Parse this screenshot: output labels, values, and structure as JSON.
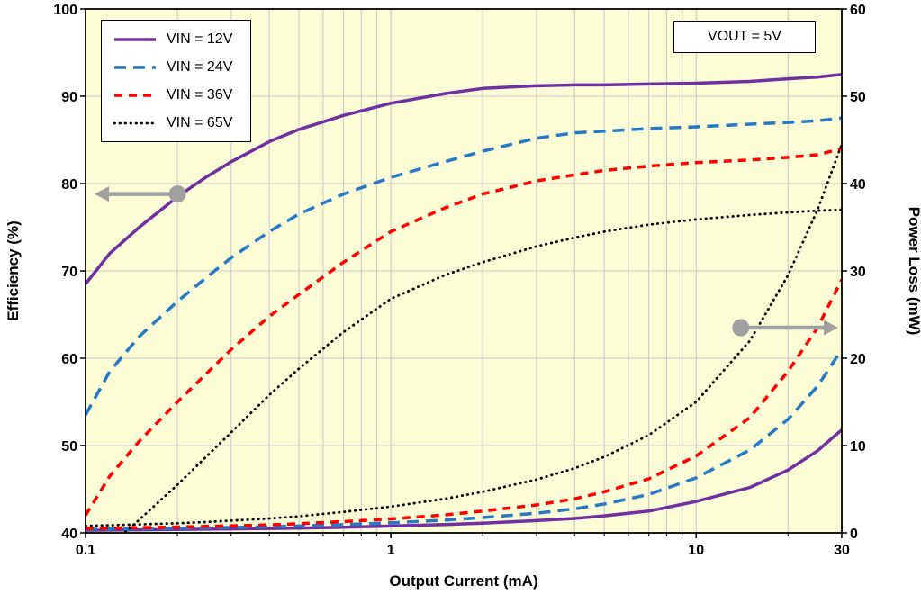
{
  "chart_data": {
    "type": "line",
    "annotation": "VOUT = 5V",
    "legend_position": "top-left",
    "grid": true,
    "x_axis": {
      "label": "Output Current (mA)",
      "scale": "log",
      "min": 0.1,
      "max": 30,
      "major_ticks": [
        0.1,
        1,
        10,
        30
      ],
      "tick_labels": [
        "0.1",
        "1",
        "10",
        "30"
      ],
      "major_gridlines": [
        1,
        10
      ],
      "minor_gridlines": [
        0.2,
        0.3,
        0.4,
        0.5,
        0.6,
        0.7,
        0.8,
        0.9,
        2,
        3,
        4,
        5,
        6,
        7,
        8,
        9,
        20
      ]
    },
    "y_left": {
      "label": "Efficiency (%)",
      "min": 40,
      "max": 100,
      "ticks": [
        40,
        50,
        60,
        70,
        80,
        90,
        100
      ]
    },
    "y_right": {
      "label": "Power Loss (mW)",
      "min": 0,
      "max": 60,
      "ticks": [
        0,
        10,
        20,
        30,
        40,
        50,
        60
      ]
    },
    "x": [
      0.1,
      0.12,
      0.15,
      0.2,
      0.25,
      0.3,
      0.4,
      0.5,
      0.7,
      1,
      1.5,
      2,
      3,
      4,
      5,
      7,
      10,
      15,
      20,
      25,
      30
    ],
    "series": [
      {
        "name": "VIN = 12V",
        "color": "#7030A0",
        "dash": "",
        "linecap": "butt",
        "stroke_width": 3.5,
        "efficiency": [
          68.5,
          72.0,
          75.0,
          78.5,
          80.8,
          82.5,
          84.8,
          86.2,
          87.8,
          89.2,
          90.3,
          90.9,
          91.2,
          91.3,
          91.3,
          91.4,
          91.5,
          91.7,
          92.0,
          92.2,
          92.5
        ],
        "power_loss": [
          0.3,
          0.32,
          0.35,
          0.38,
          0.42,
          0.45,
          0.5,
          0.55,
          0.65,
          0.78,
          0.95,
          1.1,
          1.4,
          1.65,
          1.95,
          2.5,
          3.6,
          5.2,
          7.2,
          9.4,
          11.8
        ]
      },
      {
        "name": "VIN = 24V",
        "color": "#2779C4",
        "dash": "13 8",
        "linecap": "butt",
        "stroke_width": 3.5,
        "efficiency": [
          53.5,
          58.5,
          62.5,
          66.5,
          69.3,
          71.5,
          74.5,
          76.5,
          78.8,
          80.7,
          82.5,
          83.7,
          85.2,
          85.8,
          86.0,
          86.3,
          86.5,
          86.8,
          87.0,
          87.2,
          87.5
        ],
        "power_loss": [
          0.4,
          0.43,
          0.47,
          0.52,
          0.57,
          0.62,
          0.7,
          0.78,
          0.95,
          1.15,
          1.45,
          1.75,
          2.25,
          2.75,
          3.3,
          4.4,
          6.3,
          9.5,
          13.0,
          16.8,
          21.0
        ]
      },
      {
        "name": "VIN = 36V",
        "color": "#FF0000",
        "dash": "9 7",
        "linecap": "butt",
        "stroke_width": 3.5,
        "efficiency": [
          42.0,
          46.5,
          50.5,
          55.0,
          58.3,
          61.0,
          64.8,
          67.3,
          71.0,
          74.5,
          77.2,
          78.8,
          80.3,
          81.0,
          81.5,
          82.0,
          82.4,
          82.7,
          83.0,
          83.3,
          84.0
        ],
        "power_loss": [
          0.5,
          0.54,
          0.6,
          0.67,
          0.74,
          0.8,
          0.92,
          1.05,
          1.3,
          1.6,
          2.05,
          2.5,
          3.2,
          3.9,
          4.7,
          6.2,
          8.8,
          13.2,
          18.5,
          23.5,
          29.0
        ]
      },
      {
        "name": "VIN = 65V",
        "color": "#000000",
        "dash": "0.5 5.5",
        "linecap": "round",
        "stroke_width": 2.8,
        "efficiency": [
          37.0,
          38.5,
          41.5,
          45.5,
          48.8,
          51.5,
          55.8,
          58.8,
          63.0,
          66.8,
          69.5,
          71.0,
          72.8,
          73.8,
          74.5,
          75.3,
          75.9,
          76.4,
          76.7,
          76.9,
          77.0
        ],
        "power_loss": [
          0.8,
          0.87,
          0.97,
          1.1,
          1.25,
          1.4,
          1.65,
          1.9,
          2.4,
          3.0,
          3.9,
          4.7,
          6.1,
          7.4,
          8.7,
          11.2,
          15.0,
          22.0,
          29.5,
          37.0,
          44.5
        ]
      }
    ],
    "arrows": [
      {
        "meaning": "efficiency-curves-read-left-axis",
        "axis": "left",
        "x_dot_mA": 0.2,
        "x_tip_mA": 0.107,
        "value": 78.8
      },
      {
        "meaning": "power-loss-curves-read-right-axis",
        "axis": "right",
        "x_dot_mA": 14,
        "x_tip_mA": 29.2,
        "value": 23.5
      }
    ],
    "colors": {
      "plot_background": "#FCFCD6",
      "grid": "#C6C6C6",
      "border": "#000000",
      "arrow": "#A0A0A0"
    }
  }
}
